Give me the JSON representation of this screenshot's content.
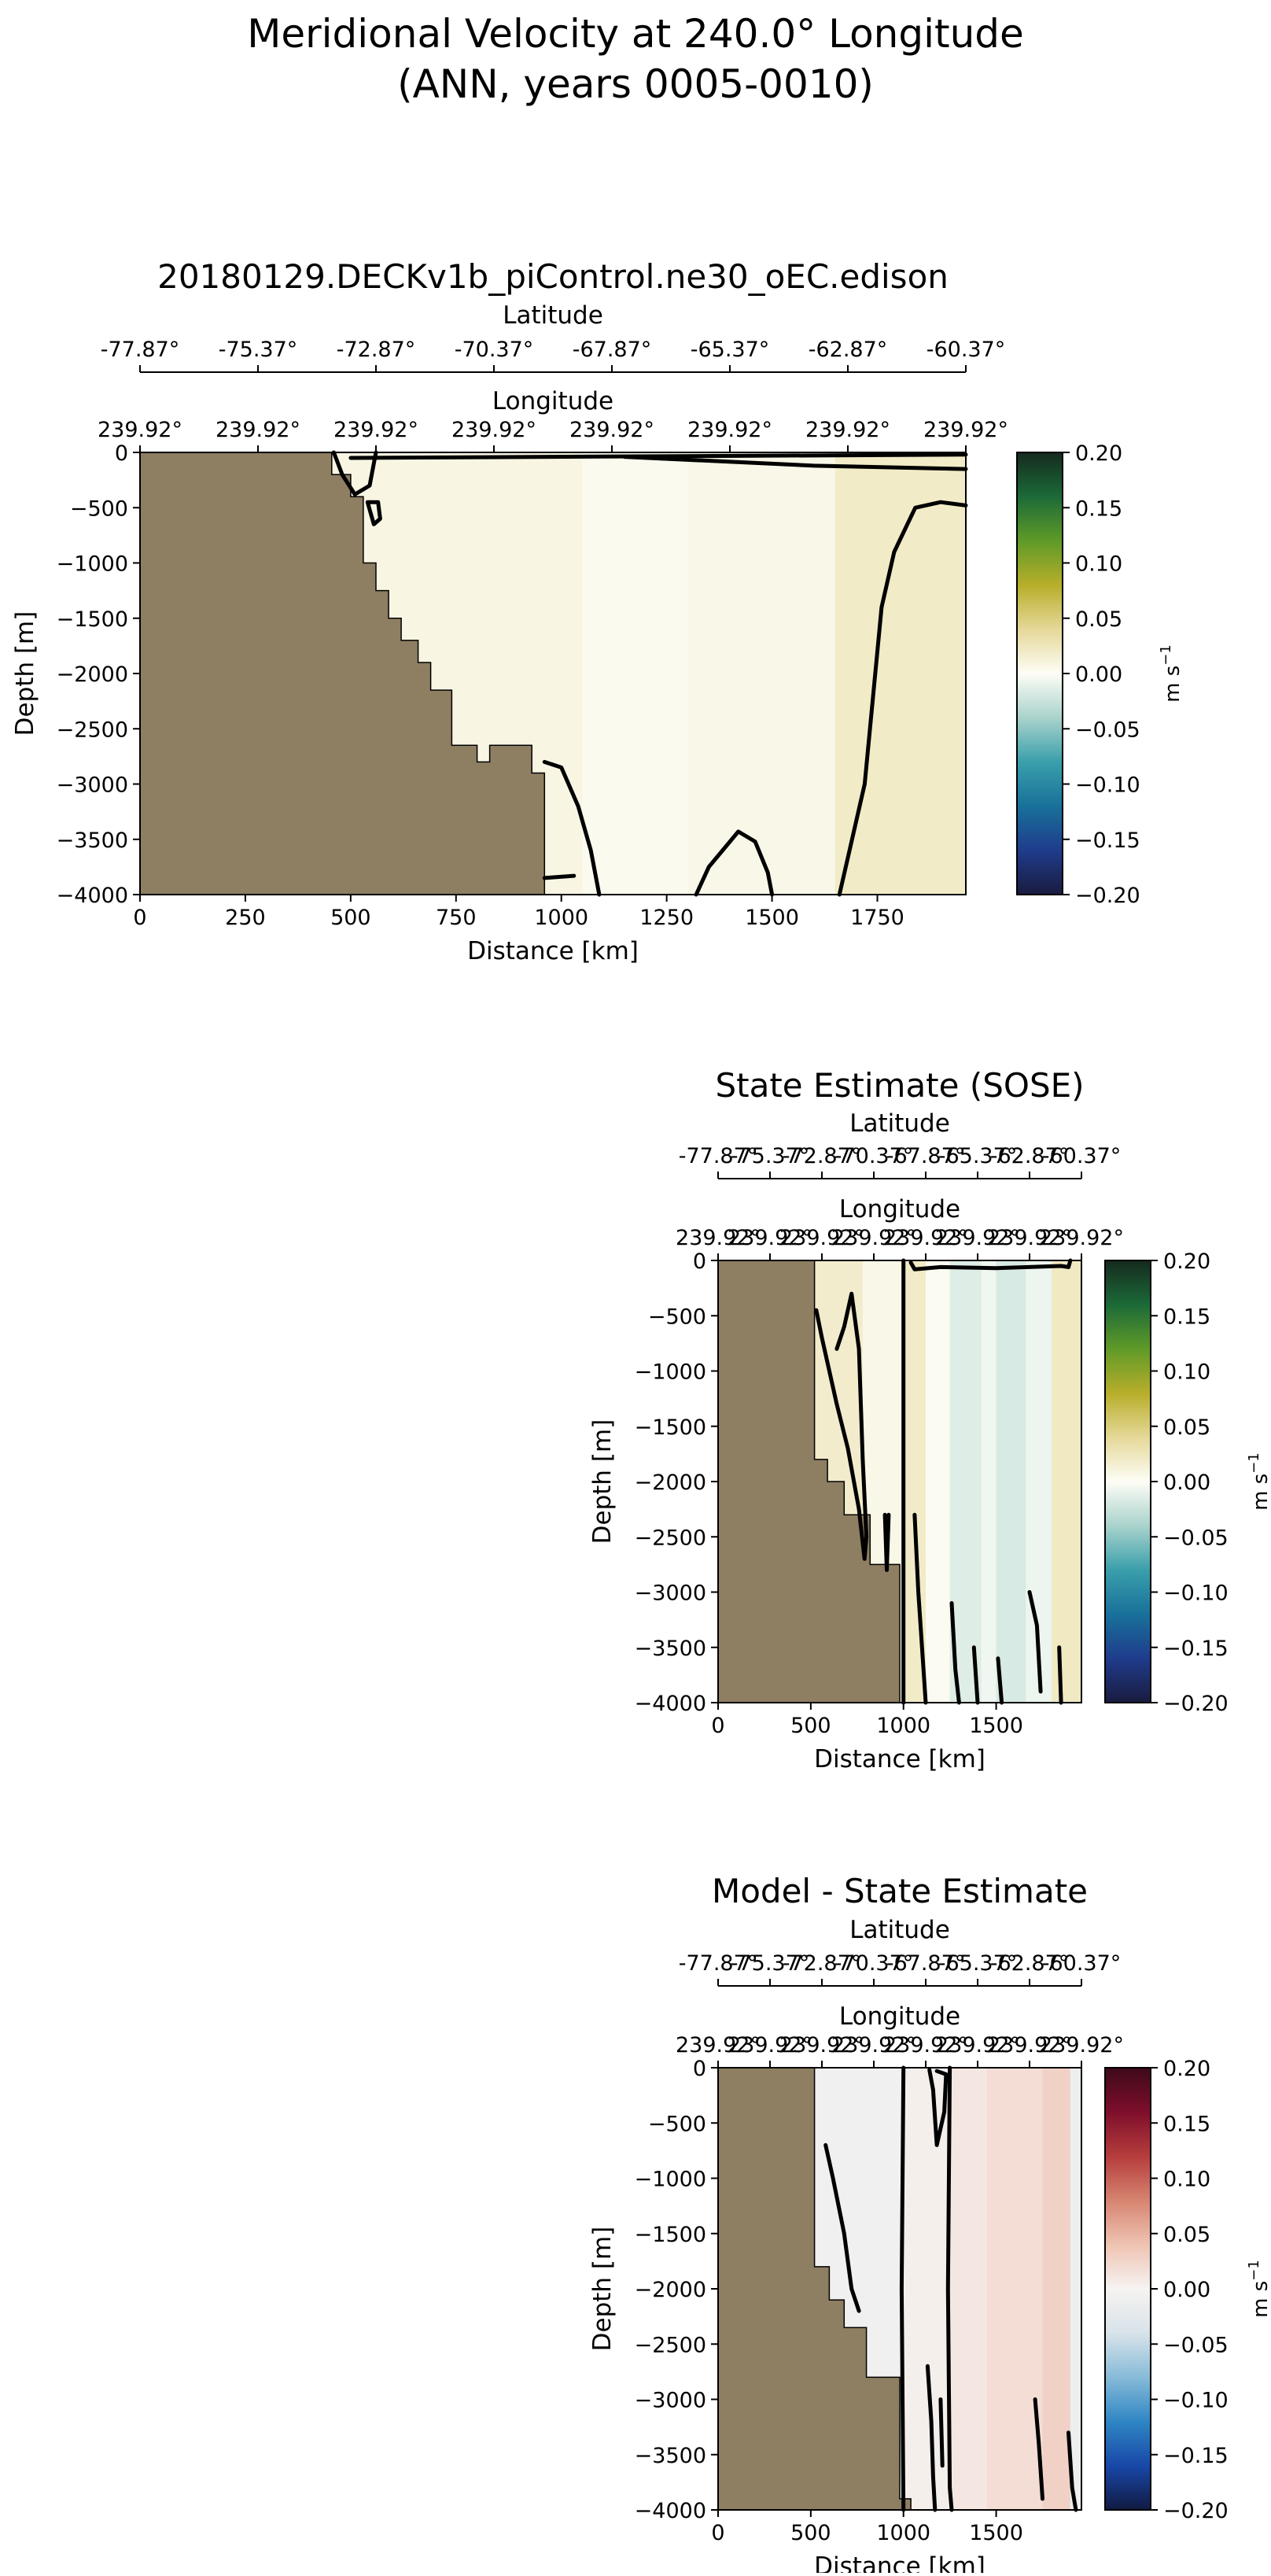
{
  "figure": {
    "title_line1": "Meridional Velocity at 240.0° Longitude",
    "title_line2": "(ANN, years 0005-0010)"
  },
  "colors": {
    "land": "#8e7e62",
    "contour": "#000000",
    "balance_scale": [
      "#1a1b3e",
      "#1f3c8c",
      "#18719a",
      "#3a9fab",
      "#a9d3cc",
      "#fdfdf6",
      "#e5d898",
      "#b7ae2a",
      "#5f9a28",
      "#1c6a38",
      "#152a1e"
    ],
    "diff_scale": [
      "#111a42",
      "#1848a8",
      "#2f86c4",
      "#87bbd8",
      "#d8e3ea",
      "#f6f3f1",
      "#efc3b2",
      "#d68470",
      "#b53d3c",
      "#7e0e2b",
      "#3d0a1a"
    ]
  },
  "chart_data": [
    {
      "type": "heatmap",
      "title": "20180129.DECKv1b_piControl.ne30_oEC.edison",
      "xlabel": "Distance [km]",
      "ylabel": "Depth [m]",
      "top_axis1_label": "Latitude",
      "top_axis2_label": "Longitude",
      "xlim": [
        0,
        1960
      ],
      "ylim": [
        -4000,
        0
      ],
      "xticks": [
        0,
        250,
        500,
        750,
        1000,
        1250,
        1500,
        1750
      ],
      "xtick_labels": [
        "0",
        "250",
        "500",
        "750",
        "1000",
        "1250",
        "1500",
        "1750"
      ],
      "yticks": [
        0,
        -500,
        -1000,
        -1500,
        -2000,
        -2500,
        -3000,
        -3500,
        -4000
      ],
      "ytick_labels": [
        "0",
        "−500",
        "−1000",
        "−1500",
        "−2000",
        "−2500",
        "−3000",
        "−3500",
        "−4000"
      ],
      "latitude_ticks": [
        0,
        280,
        560,
        840,
        1120,
        1400,
        1680,
        1960
      ],
      "latitude_labels": [
        "-77.87°",
        "-75.37°",
        "-72.87°",
        "-70.37°",
        "-67.87°",
        "-65.37°",
        "-62.87°",
        "-60.37°"
      ],
      "longitude_ticks": [
        0,
        280,
        560,
        840,
        1120,
        1400,
        1680,
        1960
      ],
      "longitude_labels": [
        "239.92°",
        "239.92°",
        "239.92°",
        "239.92°",
        "239.92°",
        "239.92°",
        "239.92°",
        "239.92°"
      ],
      "colorbar": {
        "label": "m s$^{-1}$",
        "unit_main": "m s",
        "unit_exp": "−1",
        "scale": "balance",
        "range": [
          -0.2,
          0.2
        ],
        "ticks": [
          0.2,
          0.15,
          0.1,
          0.05,
          0.0,
          -0.05,
          -0.1,
          -0.15,
          -0.2
        ],
        "tick_labels": [
          "0.20",
          "0.15",
          "0.10",
          "0.05",
          "0.00",
          "−0.05",
          "−0.10",
          "−0.15",
          "−0.20"
        ]
      },
      "background_value": 0.01,
      "field_bands": [
        {
          "x0": 450,
          "x1": 1050,
          "value": 0.008
        },
        {
          "x0": 1050,
          "x1": 1300,
          "value": 0.003
        },
        {
          "x0": 1300,
          "x1": 1650,
          "value": 0.006
        },
        {
          "x0": 1650,
          "x1": 1960,
          "value": 0.02
        }
      ],
      "land_boundary": [
        [
          0,
          0
        ],
        [
          455,
          0
        ],
        [
          455,
          -200
        ],
        [
          500,
          -200
        ],
        [
          500,
          -400
        ],
        [
          530,
          -400
        ],
        [
          530,
          -1000
        ],
        [
          560,
          -1000
        ],
        [
          560,
          -1250
        ],
        [
          590,
          -1250
        ],
        [
          590,
          -1500
        ],
        [
          620,
          -1500
        ],
        [
          620,
          -1700
        ],
        [
          660,
          -1700
        ],
        [
          660,
          -1900
        ],
        [
          690,
          -1900
        ],
        [
          690,
          -2150
        ],
        [
          740,
          -2150
        ],
        [
          740,
          -2650
        ],
        [
          800,
          -2650
        ],
        [
          800,
          -2800
        ],
        [
          830,
          -2800
        ],
        [
          830,
          -2650
        ],
        [
          930,
          -2650
        ],
        [
          930,
          -2900
        ],
        [
          960,
          -2900
        ],
        [
          960,
          -4000
        ],
        [
          0,
          -4000
        ]
      ],
      "contours": [
        [
          [
            500,
            -50
          ],
          [
            1960,
            -20
          ]
        ],
        [
          [
            1150,
            -40
          ],
          [
            1600,
            -120
          ],
          [
            1960,
            -150
          ]
        ],
        [
          [
            460,
            0
          ],
          [
            480,
            -200
          ],
          [
            510,
            -380
          ],
          [
            545,
            -300
          ],
          [
            555,
            -100
          ],
          [
            560,
            0
          ]
        ],
        [
          [
            540,
            -450
          ],
          [
            555,
            -650
          ],
          [
            570,
            -600
          ],
          [
            565,
            -450
          ],
          [
            540,
            -450
          ]
        ],
        [
          [
            960,
            -2800
          ],
          [
            1000,
            -2850
          ],
          [
            1040,
            -3200
          ],
          [
            1070,
            -3600
          ],
          [
            1090,
            -4000
          ]
        ],
        [
          [
            960,
            -3850
          ],
          [
            1030,
            -3830
          ]
        ],
        [
          [
            1320,
            -4000
          ],
          [
            1350,
            -3750
          ],
          [
            1420,
            -3430
          ],
          [
            1460,
            -3520
          ],
          [
            1490,
            -3800
          ],
          [
            1500,
            -4000
          ]
        ],
        [
          [
            1660,
            -4000
          ],
          [
            1720,
            -3000
          ],
          [
            1760,
            -1400
          ],
          [
            1790,
            -900
          ],
          [
            1840,
            -500
          ],
          [
            1900,
            -450
          ],
          [
            1960,
            -480
          ]
        ]
      ]
    },
    {
      "type": "heatmap",
      "title": "State Estimate (SOSE)",
      "xlabel": "Distance [km]",
      "ylabel": "Depth [m]",
      "top_axis1_label": "Latitude",
      "top_axis2_label": "Longitude",
      "xlim": [
        0,
        1960
      ],
      "ylim": [
        -4000,
        0
      ],
      "xticks": [
        0,
        500,
        1000,
        1500
      ],
      "xtick_labels": [
        "0",
        "500",
        "1000",
        "1500"
      ],
      "yticks": [
        0,
        -500,
        -1000,
        -1500,
        -2000,
        -2500,
        -3000,
        -3500,
        -4000
      ],
      "ytick_labels": [
        "0",
        "−500",
        "−1000",
        "−1500",
        "−2000",
        "−2500",
        "−3000",
        "−3500",
        "−4000"
      ],
      "latitude_ticks": [
        0,
        280,
        560,
        840,
        1120,
        1400,
        1680,
        1960
      ],
      "latitude_labels": [
        "-77.87°",
        "-75.37°",
        "-72.87°",
        "-70.37°",
        "-67.87°",
        "-65.37°",
        "-62.87°",
        "-60.37°"
      ],
      "longitude_ticks": [
        0,
        280,
        560,
        840,
        1120,
        1400,
        1680,
        1960
      ],
      "longitude_labels": [
        "239.92°",
        "239.92°",
        "239.92°",
        "239.92°",
        "239.92°",
        "239.92°",
        "239.92°",
        "239.92°"
      ],
      "colorbar": {
        "label": "m s$^{-1}$",
        "unit_main": "m s",
        "unit_exp": "−1",
        "scale": "balance",
        "range": [
          -0.2,
          0.2
        ],
        "ticks": [
          0.2,
          0.15,
          0.1,
          0.05,
          0.0,
          -0.05,
          -0.1,
          -0.15,
          -0.2
        ],
        "tick_labels": [
          "0.20",
          "0.15",
          "0.10",
          "0.05",
          "0.00",
          "−0.05",
          "−0.10",
          "−0.15",
          "−0.20"
        ]
      },
      "background_value": 0.012,
      "field_bands": [
        {
          "x0": 520,
          "x1": 780,
          "value": 0.018
        },
        {
          "x0": 780,
          "x1": 1000,
          "value": 0.006
        },
        {
          "x0": 1000,
          "x1": 1120,
          "value": 0.02
        },
        {
          "x0": 1120,
          "x1": 1250,
          "value": 0.002
        },
        {
          "x0": 1250,
          "x1": 1420,
          "value": -0.015
        },
        {
          "x0": 1420,
          "x1": 1500,
          "value": -0.006
        },
        {
          "x0": 1500,
          "x1": 1660,
          "value": -0.018
        },
        {
          "x0": 1660,
          "x1": 1800,
          "value": -0.008
        },
        {
          "x0": 1800,
          "x1": 1960,
          "value": 0.022
        }
      ],
      "land_boundary": [
        [
          0,
          0
        ],
        [
          520,
          0
        ],
        [
          520,
          -1800
        ],
        [
          590,
          -1800
        ],
        [
          590,
          -2000
        ],
        [
          680,
          -2000
        ],
        [
          680,
          -2300
        ],
        [
          820,
          -2300
        ],
        [
          820,
          -2750
        ],
        [
          980,
          -2750
        ],
        [
          980,
          -4000
        ],
        [
          0,
          -4000
        ]
      ],
      "contours": [
        [
          [
            1000,
            0
          ],
          [
            1000,
            -4000
          ]
        ],
        [
          [
            1040,
            -20
          ],
          [
            1060,
            -80
          ],
          [
            1200,
            -60
          ],
          [
            1500,
            -70
          ],
          [
            1850,
            -50
          ],
          [
            1890,
            -60
          ],
          [
            1900,
            0
          ]
        ],
        [
          [
            530,
            -450
          ],
          [
            560,
            -700
          ],
          [
            640,
            -1300
          ],
          [
            700,
            -1700
          ],
          [
            760,
            -2250
          ],
          [
            790,
            -2700
          ],
          [
            800,
            -2500
          ],
          [
            780,
            -1800
          ],
          [
            760,
            -800
          ],
          [
            720,
            -300
          ],
          [
            680,
            -600
          ],
          [
            640,
            -800
          ]
        ],
        [
          [
            900,
            -2300
          ],
          [
            910,
            -2800
          ],
          [
            920,
            -2300
          ]
        ],
        [
          [
            1060,
            -2300
          ],
          [
            1080,
            -3000
          ],
          [
            1100,
            -3500
          ],
          [
            1120,
            -4000
          ]
        ],
        [
          [
            1260,
            -3100
          ],
          [
            1280,
            -3700
          ],
          [
            1300,
            -4000
          ]
        ],
        [
          [
            1380,
            -3500
          ],
          [
            1400,
            -4000
          ]
        ],
        [
          [
            1510,
            -3600
          ],
          [
            1530,
            -4000
          ]
        ],
        [
          [
            1680,
            -3000
          ],
          [
            1720,
            -3300
          ],
          [
            1740,
            -3900
          ]
        ],
        [
          [
            1840,
            -3500
          ],
          [
            1850,
            -4000
          ]
        ]
      ]
    },
    {
      "type": "heatmap",
      "title": "Model - State Estimate",
      "xlabel": "Distance [km]",
      "ylabel": "Depth [m]",
      "top_axis1_label": "Latitude",
      "top_axis2_label": "Longitude",
      "xlim": [
        0,
        1960
      ],
      "ylim": [
        -4000,
        0
      ],
      "xticks": [
        0,
        500,
        1000,
        1500
      ],
      "xtick_labels": [
        "0",
        "500",
        "1000",
        "1500"
      ],
      "yticks": [
        0,
        -500,
        -1000,
        -1500,
        -2000,
        -2500,
        -3000,
        -3500,
        -4000
      ],
      "ytick_labels": [
        "0",
        "−500",
        "−1000",
        "−1500",
        "−2000",
        "−2500",
        "−3000",
        "−3500",
        "−4000"
      ],
      "latitude_ticks": [
        0,
        280,
        560,
        840,
        1120,
        1400,
        1680,
        1960
      ],
      "latitude_labels": [
        "-77.87°",
        "-75.37°",
        "-72.87°",
        "-70.37°",
        "-67.87°",
        "-65.37°",
        "-62.87°",
        "-60.37°"
      ],
      "longitude_ticks": [
        0,
        280,
        560,
        840,
        1120,
        1400,
        1680,
        1960
      ],
      "longitude_labels": [
        "239.92°",
        "239.92°",
        "239.92°",
        "239.92°",
        "239.92°",
        "239.92°",
        "239.92°",
        "239.92°"
      ],
      "colorbar": {
        "label": "m s$^{-1}$",
        "unit_main": "m s",
        "unit_exp": "−1",
        "scale": "diff",
        "range": [
          -0.2,
          0.2
        ],
        "ticks": [
          0.2,
          0.15,
          0.1,
          0.05,
          0.0,
          -0.05,
          -0.1,
          -0.15,
          -0.2
        ],
        "tick_labels": [
          "0.20",
          "0.15",
          "0.10",
          "0.05",
          "0.00",
          "−0.05",
          "−0.10",
          "−0.15",
          "−0.20"
        ]
      },
      "background_value": 0.0,
      "field_bands": [
        {
          "x0": 520,
          "x1": 1000,
          "value": -0.008
        },
        {
          "x0": 1000,
          "x1": 1250,
          "value": 0.003
        },
        {
          "x0": 1250,
          "x1": 1450,
          "value": 0.01
        },
        {
          "x0": 1450,
          "x1": 1750,
          "value": 0.018
        },
        {
          "x0": 1750,
          "x1": 1900,
          "value": 0.028
        },
        {
          "x0": 1900,
          "x1": 1960,
          "value": -0.012
        }
      ],
      "land_boundary": [
        [
          0,
          0
        ],
        [
          520,
          0
        ],
        [
          520,
          -1800
        ],
        [
          600,
          -1800
        ],
        [
          600,
          -2100
        ],
        [
          680,
          -2100
        ],
        [
          680,
          -2350
        ],
        [
          800,
          -2350
        ],
        [
          800,
          -2800
        ],
        [
          980,
          -2800
        ],
        [
          980,
          -3900
        ],
        [
          1040,
          -3900
        ],
        [
          1040,
          -4000
        ],
        [
          0,
          -4000
        ]
      ],
      "contours": [
        [
          [
            1000,
            0
          ],
          [
            990,
            -2000
          ],
          [
            1000,
            -4000
          ]
        ],
        [
          [
            1140,
            -20
          ],
          [
            1160,
            -200
          ],
          [
            1180,
            -700
          ],
          [
            1220,
            -400
          ],
          [
            1230,
            -60
          ],
          [
            1180,
            -30
          ]
        ],
        [
          [
            1250,
            0
          ],
          [
            1240,
            -2000
          ],
          [
            1250,
            -3800
          ],
          [
            1260,
            -4000
          ]
        ],
        [
          [
            580,
            -700
          ],
          [
            620,
            -1000
          ],
          [
            680,
            -1500
          ],
          [
            720,
            -2000
          ],
          [
            760,
            -2200
          ]
        ],
        [
          [
            1130,
            -2700
          ],
          [
            1150,
            -3200
          ],
          [
            1160,
            -3700
          ],
          [
            1170,
            -4000
          ]
        ],
        [
          [
            1200,
            -3000
          ],
          [
            1210,
            -3600
          ]
        ],
        [
          [
            1710,
            -3000
          ],
          [
            1730,
            -3400
          ],
          [
            1750,
            -3900
          ]
        ],
        [
          [
            1890,
            -3300
          ],
          [
            1910,
            -3800
          ],
          [
            1930,
            -4000
          ]
        ]
      ]
    }
  ]
}
